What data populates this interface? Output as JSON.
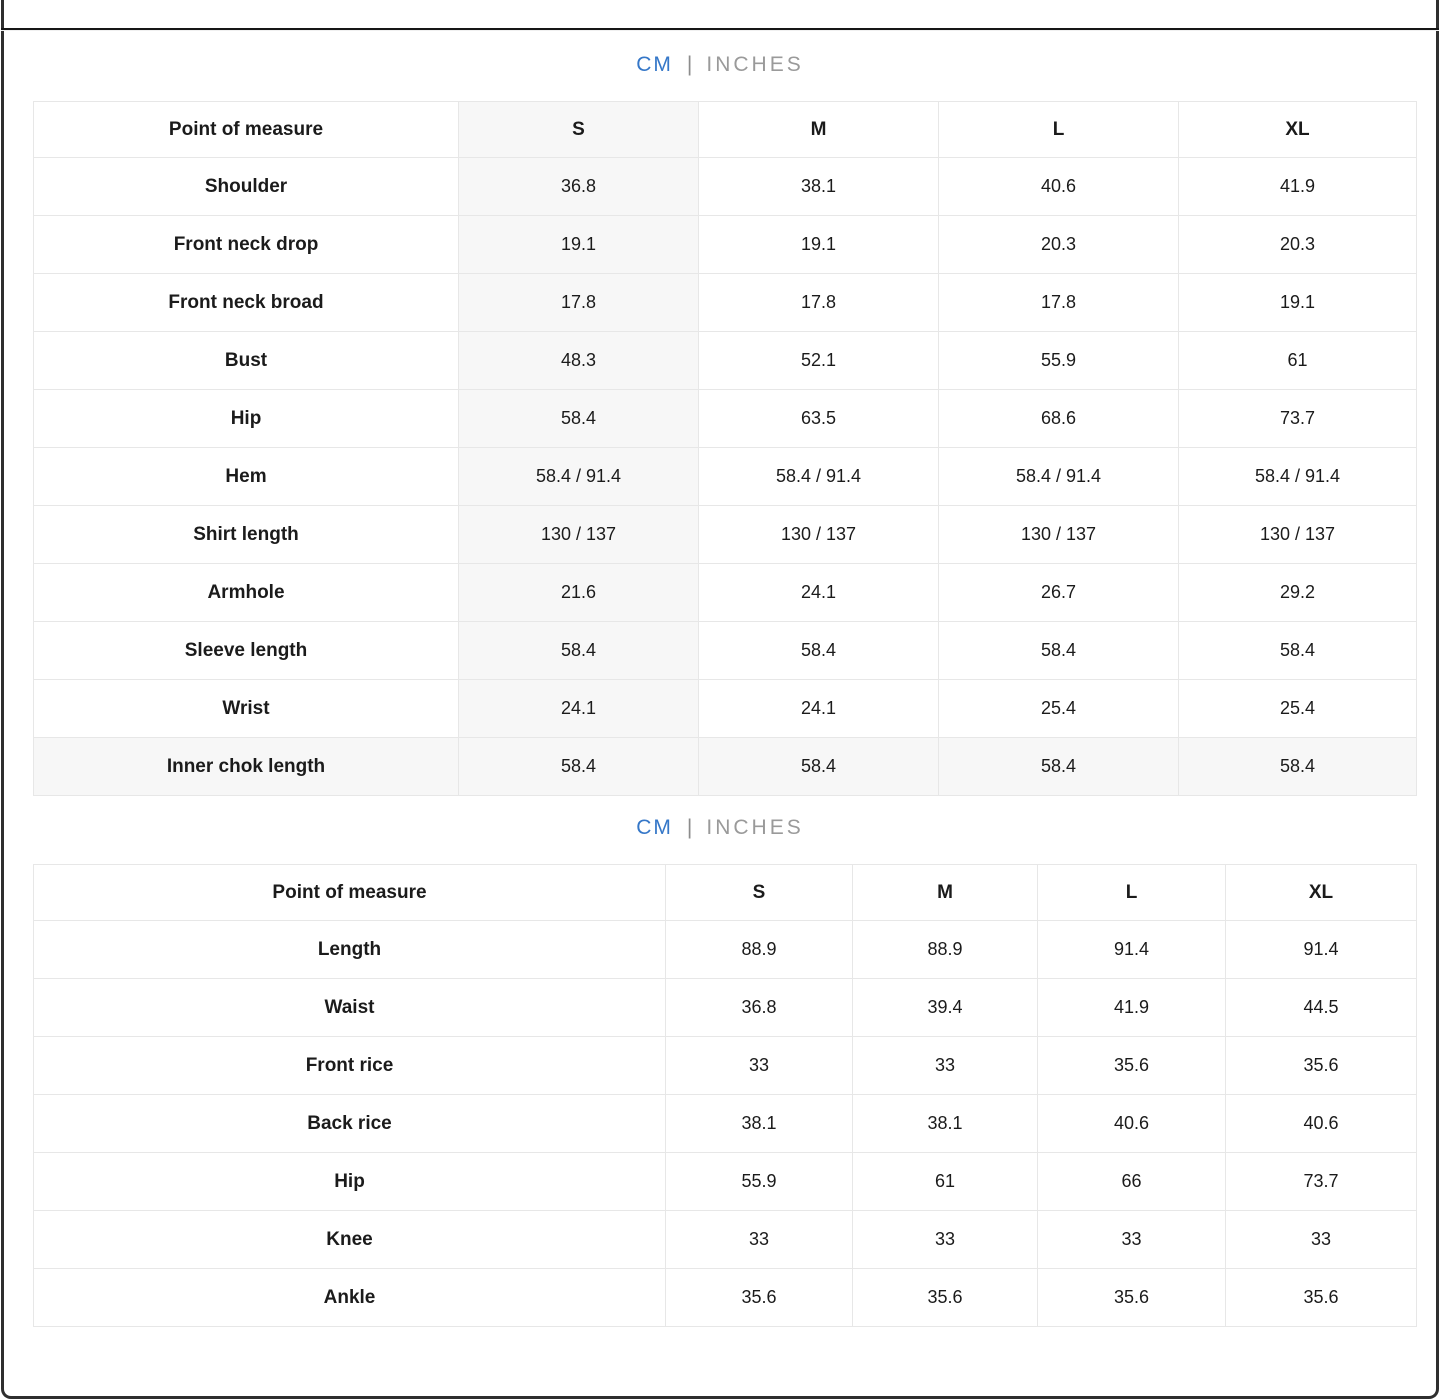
{
  "unit_toggle": {
    "cm_label": "CM",
    "divider": "|",
    "inches_label": "INCHES",
    "active_unit": "CM",
    "active_color": "#3577c8",
    "inactive_color": "#9a9a9a"
  },
  "tables": [
    {
      "name": "shirt-size-chart",
      "headers": [
        "Point of measure",
        "S",
        "M",
        "L",
        "XL"
      ],
      "rows": [
        {
          "label": "Shoulder",
          "values": [
            "36.8",
            "38.1",
            "40.6",
            "41.9"
          ]
        },
        {
          "label": "Front neck drop",
          "values": [
            "19.1",
            "19.1",
            "20.3",
            "20.3"
          ]
        },
        {
          "label": "Front neck broad",
          "values": [
            "17.8",
            "17.8",
            "17.8",
            "19.1"
          ]
        },
        {
          "label": "Bust",
          "values": [
            "48.3",
            "52.1",
            "55.9",
            "61"
          ]
        },
        {
          "label": "Hip",
          "values": [
            "58.4",
            "63.5",
            "68.6",
            "73.7"
          ]
        },
        {
          "label": "Hem",
          "values": [
            "58.4 / 91.4",
            "58.4 / 91.4",
            "58.4 / 91.4",
            "58.4 / 91.4"
          ]
        },
        {
          "label": "Shirt length",
          "values": [
            "130 / 137",
            "130 / 137",
            "130 / 137",
            "130 / 137"
          ]
        },
        {
          "label": "Armhole",
          "values": [
            "21.6",
            "24.1",
            "26.7",
            "29.2"
          ]
        },
        {
          "label": "Sleeve length",
          "values": [
            "58.4",
            "58.4",
            "58.4",
            "58.4"
          ]
        },
        {
          "label": "Wrist",
          "values": [
            "24.1",
            "24.1",
            "25.4",
            "25.4"
          ]
        },
        {
          "label": "Inner chok length",
          "values": [
            "58.4",
            "58.4",
            "58.4",
            "58.4"
          ]
        }
      ]
    },
    {
      "name": "pants-size-chart",
      "headers": [
        "Point of measure",
        "S",
        "M",
        "L",
        "XL"
      ],
      "rows": [
        {
          "label": "Length",
          "values": [
            "88.9",
            "88.9",
            "91.4",
            "91.4"
          ]
        },
        {
          "label": "Waist",
          "values": [
            "36.8",
            "39.4",
            "41.9",
            "44.5"
          ]
        },
        {
          "label": "Front rice",
          "values": [
            "33",
            "33",
            "35.6",
            "35.6"
          ]
        },
        {
          "label": "Back rice",
          "values": [
            "38.1",
            "38.1",
            "40.6",
            "40.6"
          ]
        },
        {
          "label": "Hip",
          "values": [
            "55.9",
            "61",
            "66",
            "73.7"
          ]
        },
        {
          "label": "Knee",
          "values": [
            "33",
            "33",
            "33",
            "33"
          ]
        },
        {
          "label": "Ankle",
          "values": [
            "35.6",
            "35.6",
            "35.6",
            "35.6"
          ]
        }
      ]
    }
  ]
}
